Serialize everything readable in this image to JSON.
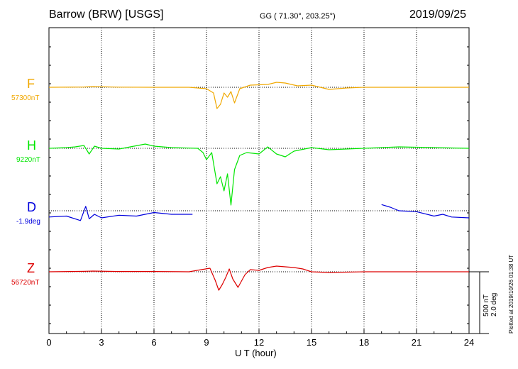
{
  "header": {
    "title": "Barrow (BRW)  [USGS]",
    "coords": "GG ( 71.30°, 203.25°)",
    "date": "2019/09/25"
  },
  "plotted_note": "Plotted at 2019/10/26 01:38 UT",
  "scale_label": "500 nT",
  "scale_label2": "2.0 deg",
  "colors": {
    "F": "#f0a800",
    "H": "#00e600",
    "D": "#0000dd",
    "Z": "#dd0000"
  },
  "chart_data": {
    "type": "line",
    "title": "Barrow (BRW)  [USGS]",
    "xlabel": "U T (hour)",
    "xlim": [
      0,
      24
    ],
    "xticks": [
      0,
      3,
      6,
      9,
      12,
      15,
      18,
      21,
      24
    ],
    "grid": true,
    "series": [
      {
        "name": "F",
        "baseline_label": "57300nT",
        "x": [
          0,
          2,
          2.5,
          4,
          6,
          8,
          8.5,
          9.0,
          9.4,
          9.6,
          9.8,
          10.0,
          10.2,
          10.4,
          10.6,
          10.9,
          11.5,
          12.5,
          13.0,
          13.5,
          14.2,
          15.0,
          16.0,
          17.0,
          18.0,
          20.0,
          22.0,
          24.0
        ],
        "y": [
          0,
          2,
          5,
          1,
          0,
          0,
          -5,
          -10,
          -40,
          -150,
          -120,
          -40,
          -70,
          -30,
          -110,
          -10,
          15,
          20,
          35,
          30,
          10,
          15,
          -15,
          -5,
          0,
          0,
          0,
          0
        ]
      },
      {
        "name": "H",
        "baseline_label": "9220nT",
        "x": [
          0,
          1,
          1.5,
          2.0,
          2.3,
          2.6,
          3.0,
          4.0,
          5.5,
          6.0,
          7.0,
          8.5,
          8.8,
          9.0,
          9.3,
          9.6,
          9.8,
          10.0,
          10.2,
          10.4,
          10.6,
          10.9,
          11.3,
          12.0,
          12.5,
          13.0,
          13.5,
          14.0,
          15.0,
          16.0,
          18.0,
          20.0,
          22.0,
          24.0
        ],
        "y": [
          0,
          5,
          10,
          20,
          -40,
          15,
          0,
          -5,
          30,
          15,
          5,
          0,
          -30,
          -80,
          -30,
          -250,
          -200,
          -300,
          -180,
          -400,
          -150,
          -50,
          -30,
          -40,
          10,
          -40,
          -60,
          -20,
          5,
          -10,
          0,
          10,
          5,
          0
        ]
      },
      {
        "name": "D",
        "baseline_label": "-1.9deg",
        "x": [
          0,
          1.0,
          1.8,
          2.1,
          2.3,
          2.6,
          3.0,
          4.0,
          5.0,
          6.0,
          7.0,
          8.2,
          null,
          19.0,
          19.5,
          20.0,
          21.0,
          22.0,
          22.5,
          23.0,
          24.0
        ],
        "y": [
          -0.35,
          -0.3,
          -0.55,
          0.25,
          -0.45,
          -0.2,
          -0.4,
          -0.25,
          -0.3,
          -0.1,
          -0.2,
          -0.2,
          null,
          0.35,
          0.2,
          0.0,
          -0.05,
          -0.3,
          -0.2,
          -0.35,
          -0.4
        ]
      },
      {
        "name": "Z",
        "baseline_label": "56720nT",
        "x": [
          0,
          2,
          2.5,
          4,
          6,
          8,
          8.7,
          9.2,
          9.5,
          9.7,
          9.9,
          10.1,
          10.3,
          10.5,
          10.8,
          11.2,
          11.5,
          12.0,
          12.5,
          13.0,
          13.5,
          14.0,
          14.5,
          15.0,
          16.0,
          18.0,
          20.0,
          22.0,
          24.0
        ],
        "y": [
          0,
          3,
          5,
          2,
          2,
          0,
          15,
          25,
          -60,
          -130,
          -90,
          -40,
          20,
          -50,
          -110,
          -20,
          15,
          10,
          30,
          40,
          35,
          30,
          20,
          0,
          -5,
          0,
          0,
          0,
          0
        ]
      }
    ]
  }
}
